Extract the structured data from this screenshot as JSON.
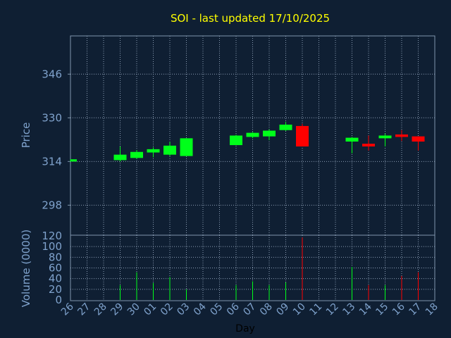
{
  "chart_data": [
    {
      "type": "candlestick",
      "title": "SOI - last updated 17/10/2025",
      "xlabel": "Day",
      "ylabel": "Price",
      "ylim": [
        287,
        360
      ],
      "yticks": [
        298,
        314,
        330,
        346
      ],
      "grid": true,
      "x_ticks": [
        "26",
        "27",
        "28",
        "29",
        "30",
        "01",
        "02",
        "03",
        "04",
        "05",
        "06",
        "07",
        "08",
        "09",
        "10",
        "11",
        "12",
        "13",
        "14",
        "15",
        "16",
        "17",
        "18"
      ],
      "candles": [
        {
          "day": "26",
          "open": 314.0,
          "close": 314.8,
          "high": 314.8,
          "low": 313.9
        },
        {
          "day": "29",
          "open": 314.5,
          "close": 316.5,
          "high": 319.5,
          "low": 314.0
        },
        {
          "day": "30",
          "open": 315.3,
          "close": 317.5,
          "high": 318.2,
          "low": 315.0
        },
        {
          "day": "01",
          "open": 317.3,
          "close": 318.5,
          "high": 319.2,
          "low": 315.5
        },
        {
          "day": "02",
          "open": 316.5,
          "close": 319.8,
          "high": 321.2,
          "low": 316.0
        },
        {
          "day": "03",
          "open": 316.0,
          "close": 322.5,
          "high": 322.5,
          "low": 316.0
        },
        {
          "day": "06",
          "open": 320.0,
          "close": 323.5,
          "high": 323.8,
          "low": 320.0
        },
        {
          "day": "07",
          "open": 323.0,
          "close": 324.5,
          "high": 324.8,
          "low": 322.5
        },
        {
          "day": "08",
          "open": 323.2,
          "close": 325.3,
          "high": 325.8,
          "low": 321.8
        },
        {
          "day": "09",
          "open": 325.5,
          "close": 327.5,
          "high": 328.5,
          "low": 325.2
        },
        {
          "day": "10",
          "open": 327.0,
          "close": 319.5,
          "high": 327.8,
          "low": 319.5
        },
        {
          "day": "13",
          "open": 321.3,
          "close": 322.7,
          "high": 323.0,
          "low": 317.0
        },
        {
          "day": "14",
          "open": 320.5,
          "close": 319.5,
          "high": 323.5,
          "low": 318.0
        },
        {
          "day": "15",
          "open": 322.5,
          "close": 323.5,
          "high": 324.2,
          "low": 319.5
        },
        {
          "day": "16",
          "open": 323.9,
          "close": 323.0,
          "high": 325.5,
          "low": 321.5
        },
        {
          "day": "17",
          "open": 323.2,
          "close": 321.3,
          "high": 323.2,
          "low": 318.0
        }
      ]
    },
    {
      "type": "bar",
      "ylabel": "Volume (0000)",
      "ylim": [
        0,
        120
      ],
      "yticks": [
        0,
        20,
        40,
        60,
        80,
        100,
        120
      ],
      "grid": true,
      "volumes": [
        {
          "day": "26",
          "value": 0,
          "direction": "down"
        },
        {
          "day": "29",
          "value": 28,
          "direction": "up"
        },
        {
          "day": "30",
          "value": 52,
          "direction": "up"
        },
        {
          "day": "01",
          "value": 32,
          "direction": "up"
        },
        {
          "day": "02",
          "value": 43,
          "direction": "up"
        },
        {
          "day": "03",
          "value": 20,
          "direction": "up"
        },
        {
          "day": "06",
          "value": 28,
          "direction": "up"
        },
        {
          "day": "07",
          "value": 35,
          "direction": "up"
        },
        {
          "day": "08",
          "value": 28,
          "direction": "up"
        },
        {
          "day": "09",
          "value": 33,
          "direction": "up"
        },
        {
          "day": "10",
          "value": 117,
          "direction": "down"
        },
        {
          "day": "13",
          "value": 62,
          "direction": "up"
        },
        {
          "day": "14",
          "value": 28,
          "direction": "down"
        },
        {
          "day": "15",
          "value": 28,
          "direction": "up"
        },
        {
          "day": "16",
          "value": 45,
          "direction": "down"
        },
        {
          "day": "17",
          "value": 52,
          "direction": "down"
        }
      ]
    }
  ],
  "colors": {
    "background": "#0f1f33",
    "frame": "#7f95ad",
    "grid": "#8a9cb3",
    "tick_label": "#7fa2cc",
    "title": "#ffff00",
    "up": "#00ff1a",
    "down": "#ff0000"
  }
}
